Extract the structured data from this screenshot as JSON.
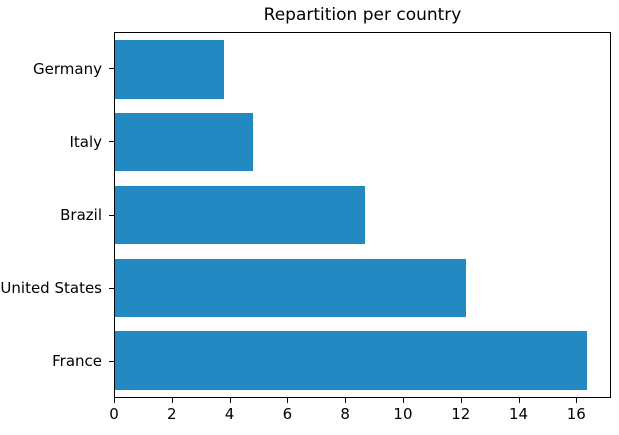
{
  "chart_data": {
    "type": "bar",
    "orientation": "horizontal",
    "title": "Repartition per country",
    "categories": [
      "Germany",
      "Italy",
      "Brazil",
      "United States",
      "France"
    ],
    "values": [
      3.8,
      4.8,
      8.7,
      12.2,
      16.4
    ],
    "series": [
      {
        "name": "Repartition",
        "values": [
          3.8,
          4.8,
          8.7,
          12.2,
          16.4
        ]
      }
    ],
    "xticks": [
      0,
      2,
      4,
      6,
      8,
      10,
      12,
      14,
      16
    ],
    "xlim": [
      0,
      17.2
    ],
    "xlabel": "",
    "ylabel": "",
    "grid": false,
    "legend": false,
    "category_order": "top-to-bottom",
    "bar_color": "#2389c2",
    "background_color": "#ffffff",
    "spine_color": "#000000",
    "text_color": "#000000"
  }
}
